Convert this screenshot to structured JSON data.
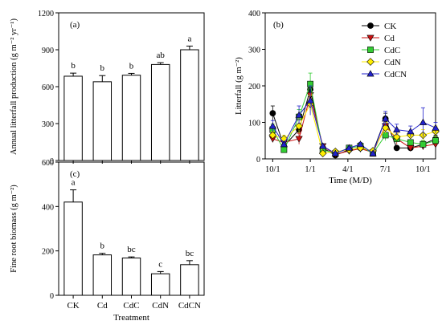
{
  "chart_data": [
    {
      "id": "a",
      "type": "bar",
      "panel_label": "(a)",
      "categories": [
        "CK",
        "Cd",
        "CdC",
        "CdN",
        "CdCN"
      ],
      "values": [
        685,
        640,
        693,
        780,
        900
      ],
      "errors": [
        25,
        50,
        15,
        15,
        30
      ],
      "letters": [
        "b",
        "b",
        "b",
        "ab",
        "a"
      ],
      "ylabel": "Annual litterfall production (g m⁻² yr⁻¹)",
      "ylim": [
        0,
        1200
      ],
      "yticks": [
        "0",
        "300",
        "600",
        "900",
        "1200"
      ],
      "bar_color": "#ffffff"
    },
    {
      "id": "c",
      "type": "bar",
      "panel_label": "(c)",
      "categories": [
        "CK",
        "Cd",
        "CdC",
        "CdN",
        "CdCN"
      ],
      "values": [
        420,
        182,
        168,
        97,
        138
      ],
      "errors": [
        55,
        7,
        5,
        10,
        18
      ],
      "letters": [
        "a",
        "b",
        "bc",
        "c",
        "bc"
      ],
      "ylabel": "Fine root biomass (g m⁻²)",
      "xlabel": "Treatment",
      "ylim": [
        0,
        600
      ],
      "yticks": [
        "0",
        "200",
        "400",
        "600"
      ],
      "bar_color": "#ffffff"
    },
    {
      "id": "b",
      "type": "line",
      "panel_label": "(b)",
      "ylabel": "Litterfall (g m⁻²)",
      "xlabel": "Time (M/D)",
      "ylim": [
        0,
        400
      ],
      "yticks": [
        "0",
        "100",
        "200",
        "300",
        "400"
      ],
      "x_tick_labels": [
        "10/1",
        "1/1",
        "4/1",
        "7/1",
        "10/1"
      ],
      "x_tick_values": [
        0,
        3,
        6,
        9,
        12
      ],
      "xlim": [
        -0.6,
        13.0
      ],
      "legend_position": "top-right",
      "series": [
        {
          "name": "CK",
          "marker": "circle",
          "fill": "#000000",
          "line": "#000000",
          "x": [
            0,
            0.9,
            2.1,
            3,
            4,
            5,
            6.1,
            7,
            8,
            9,
            9.9,
            11,
            12,
            13
          ],
          "y": [
            125,
            35,
            80,
            190,
            30,
            10,
            25,
            30,
            20,
            110,
            30,
            30,
            40,
            55
          ],
          "err": [
            20,
            5,
            15,
            20,
            5,
            3,
            5,
            5,
            5,
            15,
            5,
            5,
            10,
            10
          ]
        },
        {
          "name": "Cd",
          "marker": "triangle-down",
          "fill": "#cc1111",
          "line": "#cc1111",
          "x": [
            0,
            0.9,
            2.1,
            3,
            4,
            5,
            6.1,
            7,
            8,
            9,
            9.9,
            11,
            12,
            13
          ],
          "y": [
            55,
            45,
            55,
            175,
            35,
            12,
            22,
            28,
            18,
            90,
            55,
            30,
            35,
            40
          ],
          "err": [
            10,
            8,
            15,
            25,
            5,
            3,
            5,
            5,
            5,
            15,
            15,
            5,
            10,
            8
          ]
        },
        {
          "name": "CdC",
          "marker": "square",
          "fill": "#33cc33",
          "line": "#33cc33",
          "x": [
            0,
            0.9,
            2.1,
            3,
            4,
            5,
            6.1,
            7,
            8,
            9,
            9.9,
            11,
            12,
            13
          ],
          "y": [
            80,
            25,
            115,
            205,
            25,
            15,
            30,
            35,
            15,
            65,
            55,
            45,
            40,
            50
          ],
          "err": [
            15,
            5,
            20,
            30,
            5,
            3,
            5,
            8,
            5,
            15,
            10,
            8,
            10,
            10
          ]
        },
        {
          "name": "CdN",
          "marker": "diamond",
          "fill": "#ffee00",
          "line": "#ffee00",
          "x": [
            0,
            0.9,
            2.1,
            3,
            4,
            5,
            6.1,
            7,
            8,
            9,
            9.9,
            11,
            12,
            13
          ],
          "y": [
            65,
            55,
            90,
            150,
            15,
            20,
            25,
            30,
            22,
            85,
            60,
            65,
            65,
            75
          ],
          "err": [
            10,
            10,
            20,
            25,
            5,
            5,
            5,
            5,
            5,
            15,
            10,
            10,
            15,
            15
          ]
        },
        {
          "name": "CdCN",
          "marker": "triangle-up",
          "fill": "#2222cc",
          "line": "#2222cc",
          "x": [
            0,
            0.9,
            2.1,
            3,
            4,
            5,
            6.1,
            7,
            8,
            9,
            9.9,
            11,
            12,
            13
          ],
          "y": [
            90,
            40,
            120,
            160,
            35,
            15,
            30,
            40,
            15,
            110,
            80,
            75,
            100,
            85
          ],
          "err": [
            15,
            8,
            25,
            40,
            5,
            3,
            5,
            5,
            5,
            20,
            15,
            15,
            40,
            15
          ]
        }
      ]
    }
  ]
}
